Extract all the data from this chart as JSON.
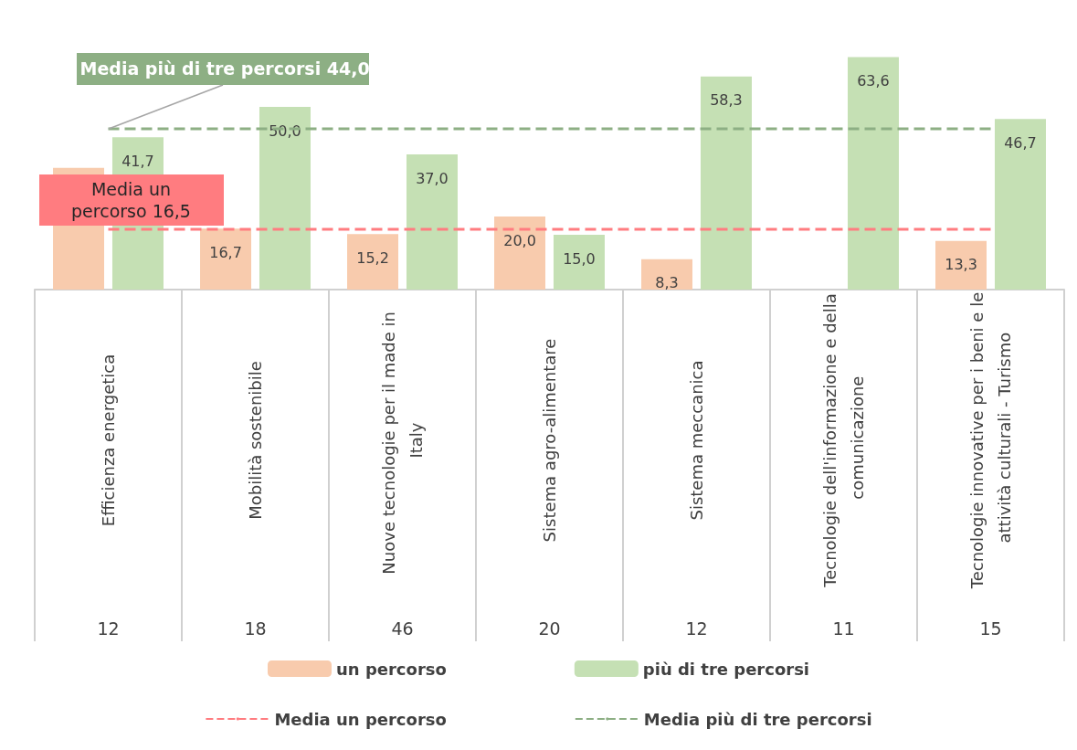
{
  "chart_data": {
    "type": "bar",
    "categories": [
      "Efficienza energetica",
      "Mobilità sostenibile",
      "Nuove tecnologie per il made in Italy",
      "Sistema agro-alimentare",
      "Sistema meccanica",
      "Tecnologie dell'informazione e della comunicazione",
      "Tecnologie innovative per i beni e le attività culturali - Turismo"
    ],
    "series": [
      {
        "name": "un percorso",
        "color": "#f8cbad",
        "values": [
          33.3,
          16.7,
          15.2,
          20.0,
          8.3,
          null,
          13.3
        ],
        "value_labels": [
          null,
          "16,7",
          "15,2",
          "20,0",
          "8,3",
          null,
          "13,3"
        ]
      },
      {
        "name": "più di tre percorsi",
        "color": "#c5e0b4",
        "values": [
          41.7,
          50.0,
          37.0,
          15.0,
          58.3,
          63.6,
          46.7
        ],
        "value_labels": [
          "41,7",
          "50,0",
          "37,0",
          "15,0",
          "58,3",
          "63,6",
          "46,7"
        ]
      },
      {
        "name": "Media un percorso",
        "type": "line",
        "color": "#ff7c80",
        "line_style": "dashed",
        "marker": "none",
        "values": [
          16.5,
          16.5,
          16.5,
          16.5,
          16.5,
          16.5,
          16.5
        ]
      },
      {
        "name": "Media più di tre percorsi",
        "type": "line",
        "color": "#8daf84",
        "line_style": "dashed",
        "marker": "none",
        "values": [
          44.0,
          44.0,
          44.0,
          44.0,
          44.0,
          44.0,
          44.0
        ]
      }
    ],
    "tick_labels": "x",
    "legend": "bottom",
    "annotations": [
      {
        "text": "Media un percorso 16,5",
        "x": "Efficienza energetica",
        "y": 16.5
      },
      {
        "text": "Media più di tre percorsi 44,0",
        "x": "Efficienza energetica",
        "y": 44.0
      },
      "12",
      "18",
      "46",
      "20",
      "12",
      "11",
      "15"
    ]
  }
}
